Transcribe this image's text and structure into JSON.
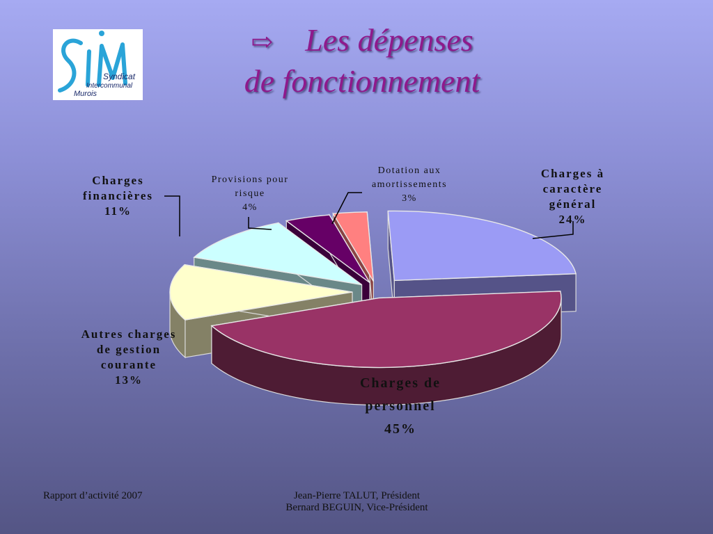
{
  "slide": {
    "title_line1": "Les dépenses",
    "title_line2": "de fonctionnement",
    "arrow_glyph": "⇨",
    "logo_text": "SIM",
    "logo_subtitle_1": "Syndicat",
    "logo_subtitle_2": "Intercommunal",
    "logo_subtitle_3": "Murois"
  },
  "chart_data": {
    "type": "pie",
    "title": "",
    "slices": [
      {
        "label": "Charges à caractère général",
        "value": 24,
        "value_label": "24%",
        "color": "#9b9bf5",
        "side_color": "#555388"
      },
      {
        "label": "Charges de personnel",
        "value": 45,
        "value_label": "45%",
        "color": "#993366",
        "side_color": "#4e1c34"
      },
      {
        "label": "Autres charges de gestion courante",
        "value": 13,
        "value_label": "13%",
        "color": "#ffffcc",
        "side_color": "#848166"
      },
      {
        "label": "Charges financières",
        "value": 11,
        "value_label": "11%",
        "color": "#ccffff",
        "side_color": "#6a8888"
      },
      {
        "label": "Provisions pour risque",
        "value": 4,
        "value_label": "4%",
        "color": "#660066",
        "side_color": "#3a003a"
      },
      {
        "label": "Dotation aux amortissements",
        "value": 3,
        "value_label": "3%",
        "color": "#ff8080",
        "side_color": "#8a4444"
      },
      {
        "label": "",
        "value": 0,
        "value_label": "",
        "color": "#0066cc",
        "side_color": "#063766"
      }
    ],
    "legend": "none",
    "labels_outside": true
  },
  "footer": {
    "left": "Rapport d’activité 2007",
    "center_line1": "Jean-Pierre TALUT, Président",
    "center_line2": "Bernard BEGUIN, Vice-Président"
  }
}
